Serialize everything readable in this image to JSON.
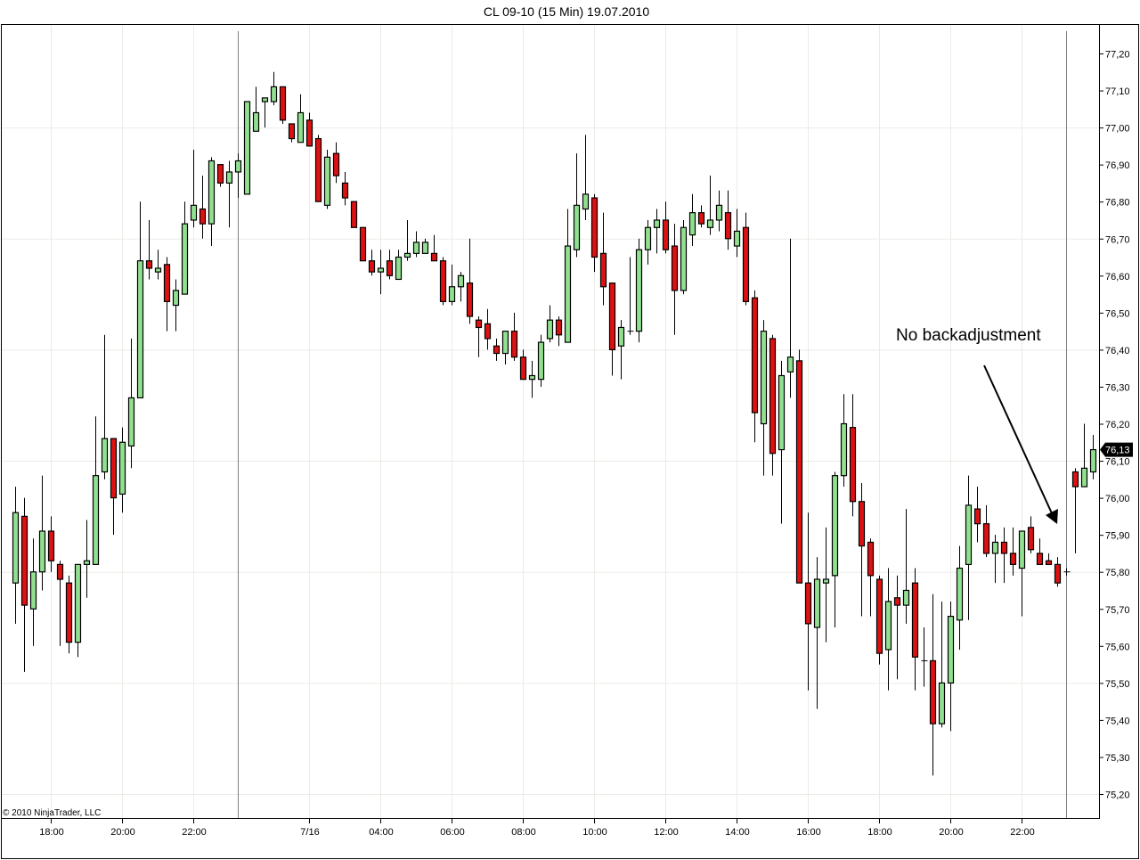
{
  "chart_data": {
    "type": "candlestick",
    "title": "CL 09-10 (15 Min)  19.07.2010",
    "copyright": "© 2010 NinjaTrader, LLC",
    "annotation": "No backadjustment",
    "last_price_label": "76,13",
    "last_price": 76.13,
    "ylim": [
      75.17,
      77.28
    ],
    "y_ticks": [
      77.2,
      77.1,
      77.0,
      76.9,
      76.8,
      76.7,
      76.6,
      76.5,
      76.4,
      76.3,
      76.2,
      76.1,
      76.0,
      75.9,
      75.8,
      75.7,
      75.6,
      75.5,
      75.4,
      75.3,
      75.2
    ],
    "y_tick_labels": [
      "77,20",
      "77,10",
      "77,00",
      "76,90",
      "76,80",
      "76,70",
      "76,60",
      "76,50",
      "76,40",
      "76,30",
      "76,20",
      "76,10",
      "76,00",
      "75,90",
      "75,80",
      "75,70",
      "75,60",
      "75,50",
      "75,40",
      "75,30",
      "75,20"
    ],
    "y_gridlines": [
      77.0,
      76.7,
      76.4,
      76.1,
      75.8,
      75.5,
      75.2
    ],
    "x_ticks": [
      {
        "label": "18:00",
        "bar": 4
      },
      {
        "label": "20:00",
        "bar": 12
      },
      {
        "label": "22:00",
        "bar": 20
      },
      {
        "label": "7/16",
        "bar": 33
      },
      {
        "label": "04:00",
        "bar": 41
      },
      {
        "label": "06:00",
        "bar": 49
      },
      {
        "label": "08:00",
        "bar": 57
      },
      {
        "label": "10:00",
        "bar": 65
      },
      {
        "label": "12:00",
        "bar": 73
      },
      {
        "label": "14:00",
        "bar": 81
      },
      {
        "label": "16:00",
        "bar": 89
      },
      {
        "label": "18:00",
        "bar": 97
      },
      {
        "label": "20:00",
        "bar": 105
      },
      {
        "label": "22:00",
        "bar": 113
      }
    ],
    "session_breaks": [
      25,
      118
    ],
    "colors": {
      "up": "#90e090",
      "down": "#dd1111",
      "outline": "#000000",
      "grid": "#ecebe6",
      "session_line": "#808080"
    },
    "fields": [
      "open",
      "high",
      "low",
      "close"
    ],
    "candles": [
      [
        75.77,
        76.03,
        75.66,
        75.96
      ],
      [
        75.95,
        76.0,
        75.53,
        75.71
      ],
      [
        75.7,
        75.89,
        75.6,
        75.8
      ],
      [
        75.8,
        76.06,
        75.75,
        75.91
      ],
      [
        75.91,
        75.95,
        75.8,
        75.83
      ],
      [
        75.82,
        75.83,
        75.6,
        75.78
      ],
      [
        75.77,
        75.79,
        75.58,
        75.61
      ],
      [
        75.61,
        75.82,
        75.57,
        75.82
      ],
      [
        75.82,
        75.94,
        75.73,
        75.83
      ],
      [
        75.82,
        76.22,
        75.82,
        76.06
      ],
      [
        76.07,
        76.44,
        76.05,
        76.16
      ],
      [
        76.16,
        76.16,
        75.9,
        76.0
      ],
      [
        76.01,
        76.19,
        75.96,
        76.15
      ],
      [
        76.14,
        76.43,
        76.08,
        76.27
      ],
      [
        76.27,
        76.8,
        76.27,
        76.64
      ],
      [
        76.64,
        76.75,
        76.59,
        76.62
      ],
      [
        76.61,
        76.67,
        76.59,
        76.62
      ],
      [
        76.63,
        76.65,
        76.45,
        76.53
      ],
      [
        76.52,
        76.59,
        76.45,
        76.56
      ],
      [
        76.55,
        76.8,
        76.55,
        76.74
      ],
      [
        76.75,
        76.94,
        76.73,
        76.79
      ],
      [
        76.78,
        76.87,
        76.7,
        76.74
      ],
      [
        76.74,
        76.92,
        76.68,
        76.91
      ],
      [
        76.9,
        76.9,
        76.84,
        76.85
      ],
      [
        76.85,
        76.91,
        76.73,
        76.88
      ],
      [
        76.88,
        76.93,
        76.81,
        76.91
      ],
      [
        76.82,
        77.07,
        76.82,
        77.07
      ],
      [
        76.99,
        77.11,
        76.99,
        77.04
      ],
      [
        77.07,
        77.08,
        77.0,
        77.08
      ],
      [
        77.07,
        77.15,
        77.06,
        77.11
      ],
      [
        77.11,
        77.11,
        77.01,
        77.02
      ],
      [
        77.01,
        77.01,
        76.96,
        76.97
      ],
      [
        76.96,
        77.09,
        76.96,
        77.04
      ],
      [
        77.02,
        77.04,
        76.95,
        76.95
      ],
      [
        76.97,
        76.98,
        76.8,
        76.8
      ],
      [
        76.79,
        76.94,
        76.78,
        76.92
      ],
      [
        76.93,
        76.96,
        76.85,
        76.87
      ],
      [
        76.85,
        76.88,
        76.79,
        76.81
      ],
      [
        76.8,
        76.8,
        76.73,
        76.73
      ],
      [
        76.73,
        76.73,
        76.64,
        76.64
      ],
      [
        76.64,
        76.67,
        76.6,
        76.61
      ],
      [
        76.61,
        76.67,
        76.55,
        76.62
      ],
      [
        76.64,
        76.67,
        76.59,
        76.6
      ],
      [
        76.59,
        76.67,
        76.59,
        76.65
      ],
      [
        76.65,
        76.75,
        76.64,
        76.66
      ],
      [
        76.66,
        76.72,
        76.65,
        76.69
      ],
      [
        76.66,
        76.7,
        76.66,
        76.69
      ],
      [
        76.66,
        76.71,
        76.64,
        76.64
      ],
      [
        76.64,
        76.65,
        76.52,
        76.53
      ],
      [
        76.53,
        76.63,
        76.52,
        76.57
      ],
      [
        76.57,
        76.61,
        76.53,
        76.6
      ],
      [
        76.58,
        76.7,
        76.47,
        76.49
      ],
      [
        76.48,
        76.49,
        76.38,
        76.46
      ],
      [
        76.47,
        76.51,
        76.4,
        76.43
      ],
      [
        76.41,
        76.43,
        76.37,
        76.39
      ],
      [
        76.39,
        76.45,
        76.36,
        76.45
      ],
      [
        76.45,
        76.5,
        76.37,
        76.38
      ],
      [
        76.38,
        76.4,
        76.32,
        76.32
      ],
      [
        76.32,
        76.37,
        76.27,
        76.33
      ],
      [
        76.32,
        76.44,
        76.3,
        76.42
      ],
      [
        76.43,
        76.52,
        76.42,
        76.48
      ],
      [
        76.48,
        76.49,
        76.41,
        76.44
      ],
      [
        76.42,
        76.78,
        76.42,
        76.68
      ],
      [
        76.67,
        76.93,
        76.65,
        76.79
      ],
      [
        76.78,
        76.98,
        76.75,
        76.82
      ],
      [
        76.81,
        76.82,
        76.61,
        76.65
      ],
      [
        76.66,
        76.77,
        76.52,
        76.57
      ],
      [
        76.58,
        76.58,
        76.33,
        76.4
      ],
      [
        76.41,
        76.48,
        76.32,
        76.46
      ],
      [
        76.45,
        76.65,
        76.44,
        76.45
      ],
      [
        76.45,
        76.7,
        76.42,
        76.67
      ],
      [
        76.67,
        76.75,
        76.63,
        76.73
      ],
      [
        76.73,
        76.78,
        76.66,
        76.75
      ],
      [
        76.75,
        76.8,
        76.66,
        76.67
      ],
      [
        76.68,
        76.74,
        76.44,
        76.56
      ],
      [
        76.56,
        76.75,
        76.55,
        76.73
      ],
      [
        76.71,
        76.82,
        76.68,
        76.77
      ],
      [
        76.77,
        76.79,
        76.73,
        76.74
      ],
      [
        76.73,
        76.87,
        76.71,
        76.75
      ],
      [
        76.75,
        76.83,
        76.72,
        76.79
      ],
      [
        76.77,
        76.83,
        76.67,
        76.7
      ],
      [
        76.68,
        76.78,
        76.65,
        76.72
      ],
      [
        76.73,
        76.77,
        76.52,
        76.53
      ],
      [
        76.54,
        76.56,
        76.15,
        76.23
      ],
      [
        76.2,
        76.48,
        76.06,
        76.45
      ],
      [
        76.43,
        76.44,
        76.06,
        76.12
      ],
      [
        76.13,
        76.37,
        75.93,
        76.33
      ],
      [
        76.34,
        76.7,
        76.27,
        76.38
      ],
      [
        76.37,
        76.4,
        75.77,
        75.77
      ],
      [
        75.77,
        75.96,
        75.48,
        75.66
      ],
      [
        75.65,
        75.84,
        75.43,
        75.78
      ],
      [
        75.77,
        75.92,
        75.61,
        75.78
      ],
      [
        75.79,
        76.07,
        75.65,
        76.06
      ],
      [
        76.06,
        76.28,
        76.03,
        76.2
      ],
      [
        76.19,
        76.28,
        75.95,
        75.99
      ],
      [
        75.99,
        76.04,
        75.68,
        75.87
      ],
      [
        75.88,
        75.89,
        75.68,
        75.79
      ],
      [
        75.78,
        75.79,
        75.55,
        75.58
      ],
      [
        75.59,
        75.81,
        75.48,
        75.72
      ],
      [
        75.73,
        75.79,
        75.51,
        75.71
      ],
      [
        75.71,
        75.97,
        75.66,
        75.75
      ],
      [
        75.77,
        75.81,
        75.48,
        75.57
      ],
      [
        75.56,
        75.65,
        75.49,
        75.56
      ],
      [
        75.56,
        75.74,
        75.25,
        75.39
      ],
      [
        75.39,
        75.72,
        75.38,
        75.5
      ],
      [
        75.5,
        75.72,
        75.37,
        75.68
      ],
      [
        75.67,
        75.87,
        75.59,
        75.81
      ],
      [
        75.82,
        76.06,
        75.67,
        75.98
      ],
      [
        75.97,
        76.03,
        75.88,
        75.93
      ],
      [
        75.93,
        75.98,
        75.84,
        75.85
      ],
      [
        75.85,
        75.9,
        75.77,
        75.88
      ],
      [
        75.88,
        75.92,
        75.77,
        75.85
      ],
      [
        75.85,
        75.92,
        75.79,
        75.82
      ],
      [
        75.81,
        75.91,
        75.68,
        75.91
      ],
      [
        75.92,
        75.95,
        75.85,
        75.86
      ],
      [
        75.85,
        75.89,
        75.82,
        75.82
      ],
      [
        75.83,
        75.85,
        75.82,
        75.82
      ],
      [
        75.82,
        75.84,
        75.76,
        75.77
      ],
      [
        75.8,
        75.81,
        75.79,
        75.8
      ],
      [
        76.07,
        76.08,
        75.85,
        76.03
      ],
      [
        76.03,
        76.2,
        76.03,
        76.08
      ],
      [
        76.07,
        76.17,
        76.05,
        76.13
      ]
    ]
  }
}
